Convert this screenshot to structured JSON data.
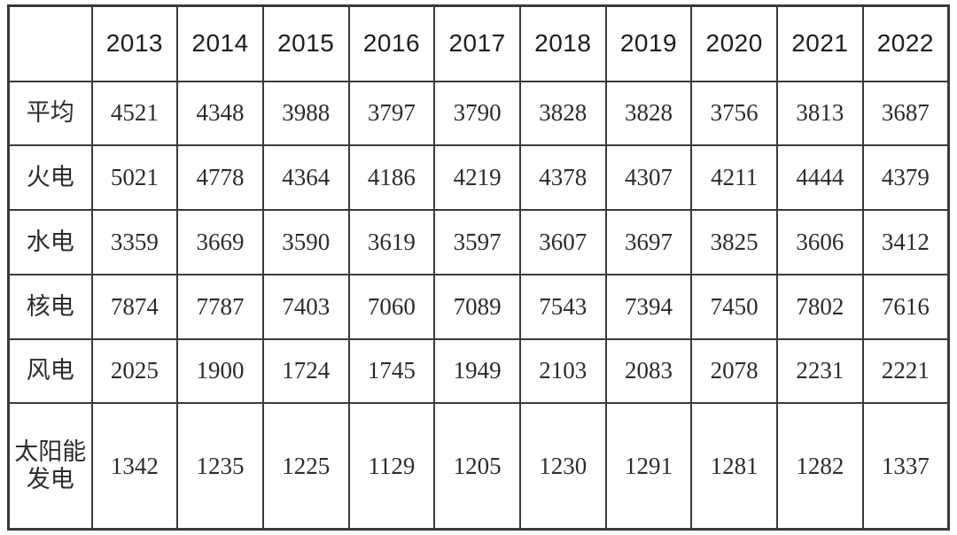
{
  "chart_data": {
    "type": "table",
    "title": "",
    "corner_label": "",
    "categories": [
      "2013",
      "2014",
      "2015",
      "2016",
      "2017",
      "2018",
      "2019",
      "2020",
      "2021",
      "2022"
    ],
    "series": [
      {
        "name": "平均",
        "values": [
          4521,
          4348,
          3988,
          3797,
          3790,
          3828,
          3828,
          3756,
          3813,
          3687
        ]
      },
      {
        "name": "火电",
        "values": [
          5021,
          4778,
          4364,
          4186,
          4219,
          4378,
          4307,
          4211,
          4444,
          4379
        ]
      },
      {
        "name": "水电",
        "values": [
          3359,
          3669,
          3590,
          3619,
          3597,
          3607,
          3697,
          3825,
          3606,
          3412
        ]
      },
      {
        "name": "核电",
        "values": [
          7874,
          7787,
          7403,
          7060,
          7089,
          7543,
          7394,
          7450,
          7802,
          7616
        ]
      },
      {
        "name": "风电",
        "values": [
          2025,
          1900,
          1724,
          1745,
          1949,
          2103,
          2083,
          2078,
          2231,
          2221
        ]
      },
      {
        "name": "太阳能发电",
        "values": [
          1342,
          1235,
          1225,
          1129,
          1205,
          1230,
          1291,
          1281,
          1282,
          1337
        ]
      }
    ],
    "layout": {
      "grid": "full-borders",
      "header_font": "sans-serif",
      "body_font": "serif"
    }
  },
  "colors": {
    "background": "#ffffff",
    "border": "#3a3a3a",
    "header_text": "#1d1d1f",
    "body_text": "#2c2c2e"
  }
}
